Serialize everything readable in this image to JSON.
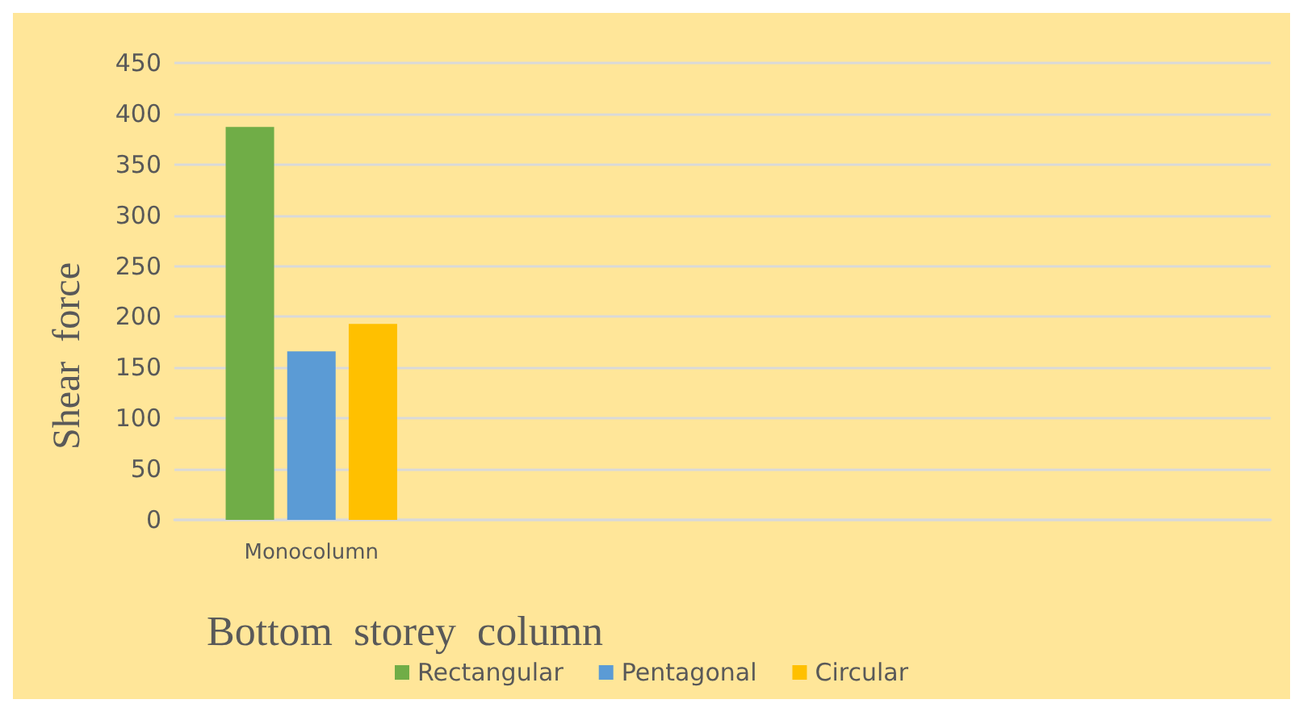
{
  "chart_data": {
    "type": "bar",
    "xlabel": "Bottom  storey  column",
    "ylabel": "Shear  force",
    "categories": [
      "Monocolumn",
      null,
      null,
      null
    ],
    "series": [
      {
        "name": "Rectangular",
        "color": "#70ad47",
        "values": [
          387,
          null,
          null,
          null
        ]
      },
      {
        "name": "Pentagonal",
        "color": "#5b9bd5",
        "values": [
          166,
          null,
          null,
          null
        ]
      },
      {
        "name": "Circular",
        "color": "#ffc000",
        "values": [
          193,
          null,
          null,
          null
        ]
      }
    ],
    "ylim": [
      0,
      450
    ],
    "yticks": [
      0,
      50,
      100,
      150,
      200,
      250,
      300,
      350,
      400,
      450
    ],
    "grid": "y",
    "legend": "bottom"
  }
}
